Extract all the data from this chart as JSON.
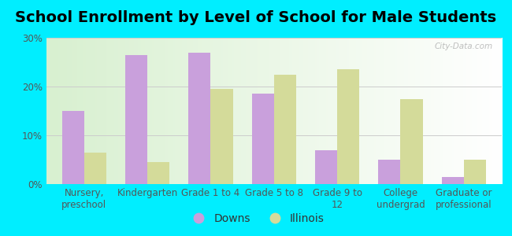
{
  "title": "School Enrollment by Level of School for Male Students",
  "categories": [
    "Nursery,\npreschool",
    "Kindergarten",
    "Grade 1 to 4",
    "Grade 5 to 8",
    "Grade 9 to\n12",
    "College\nundergrad",
    "Graduate or\nprofessional"
  ],
  "downs_values": [
    15.0,
    26.5,
    27.0,
    18.5,
    7.0,
    5.0,
    1.5
  ],
  "illinois_values": [
    6.5,
    4.5,
    19.5,
    22.5,
    23.5,
    17.5,
    5.0
  ],
  "downs_color": "#c9a0dc",
  "illinois_color": "#d4db9a",
  "background_outer": "#00eeff",
  "ylim": [
    0,
    30
  ],
  "yticks": [
    0,
    10,
    20,
    30
  ],
  "ytick_labels": [
    "0%",
    "10%",
    "20%",
    "30%"
  ],
  "title_fontsize": 14,
  "legend_labels": [
    "Downs",
    "Illinois"
  ],
  "bar_width": 0.35,
  "grid_color": "#cccccc",
  "watermark": "City-Data.com",
  "tick_label_color": "#555555",
  "tick_label_fontsize": 8.5
}
